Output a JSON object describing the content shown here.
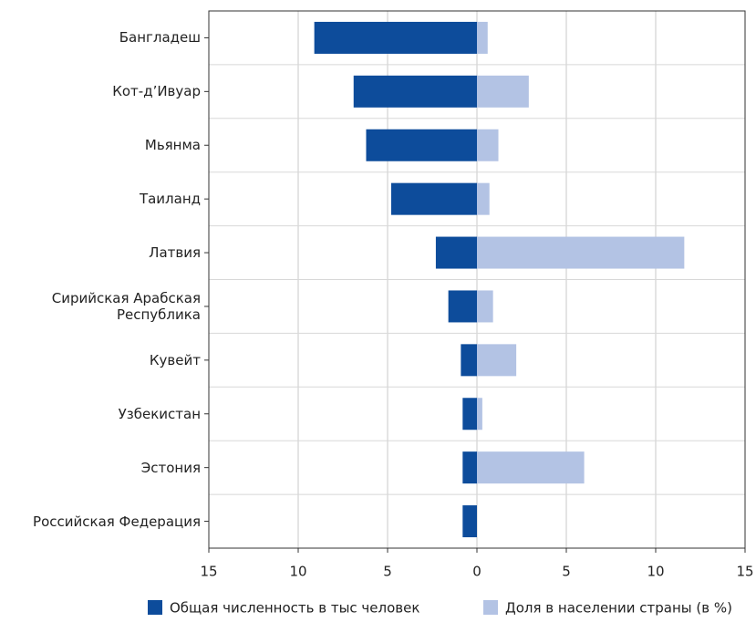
{
  "chart_data": {
    "type": "diverging-bar",
    "categories": [
      "Бангладеш",
      "Кот-д’Ивуар",
      "Мьянма",
      "Таиланд",
      "Латвия",
      "Сирийская Арабская\nРеспублика",
      "Кувейт",
      "Узбекистан",
      "Эстония",
      "Российская Федерация"
    ],
    "series": [
      {
        "name": "Общая численность в тыс человек",
        "color": "#0d4c9b",
        "direction": "left",
        "values": [
          9.1,
          6.9,
          6.2,
          4.8,
          2.3,
          1.6,
          0.9,
          0.8,
          0.8,
          0.8
        ]
      },
      {
        "name": "Доля в населении страны (в %)",
        "color": "#b3c3e4",
        "direction": "right",
        "values": [
          0.6,
          2.9,
          1.2,
          0.7,
          11.6,
          0.9,
          2.2,
          0.3,
          6.0,
          0
        ]
      }
    ],
    "xlim": [
      -15,
      15
    ],
    "xticks": [
      {
        "value": -15,
        "label": "15"
      },
      {
        "value": -10,
        "label": "10"
      },
      {
        "value": -5,
        "label": "5"
      },
      0,
      5,
      10,
      15
    ],
    "grid": true
  }
}
